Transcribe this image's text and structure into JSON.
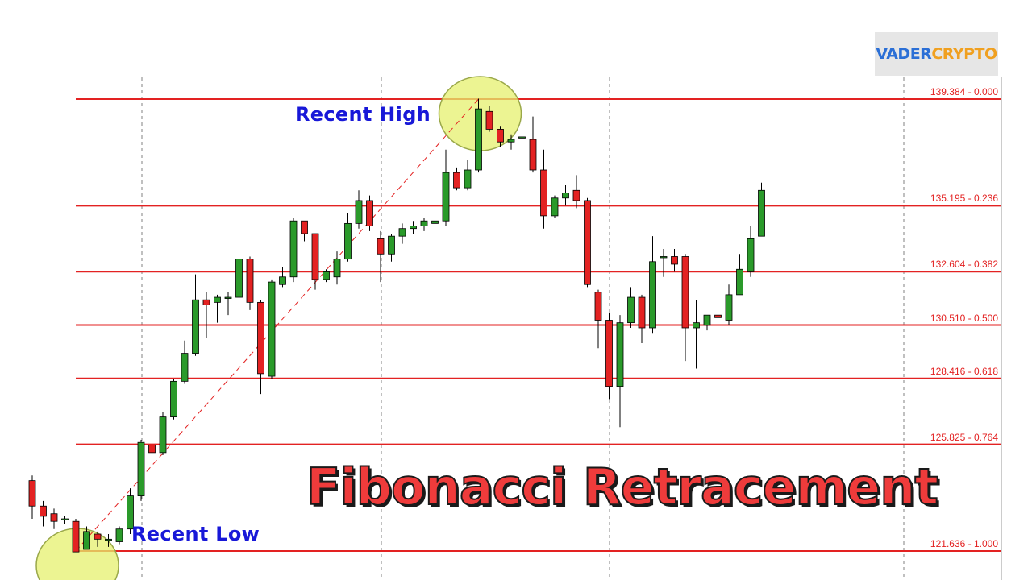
{
  "brand": {
    "part1": "VADER",
    "part2": "CRYPTO"
  },
  "title": "Fibonacci Retracement",
  "annotations": {
    "recent_high": "Recent High",
    "recent_low": "Recent Low"
  },
  "colors": {
    "bull": "#2a9a2a",
    "bear": "#e32222",
    "fib_line": "#e32222",
    "highlight": "#e6f06e",
    "annotation": "#1818d8"
  },
  "chart_data": {
    "type": "candlestick",
    "fib_levels": [
      {
        "price": 139.384,
        "ratio": "0.000",
        "label": "139.384 - 0.000"
      },
      {
        "price": 135.195,
        "ratio": "0.236",
        "label": "135.195 - 0.236"
      },
      {
        "price": 132.604,
        "ratio": "0.382",
        "label": "132.604 - 0.382"
      },
      {
        "price": 130.51,
        "ratio": "0.500",
        "label": "130.510 - 0.500"
      },
      {
        "price": 128.416,
        "ratio": "0.618",
        "label": "128.416 - 0.618"
      },
      {
        "price": 125.825,
        "ratio": "0.764",
        "label": "125.825 - 0.764"
      },
      {
        "price": 121.636,
        "ratio": "1.000",
        "label": "121.636 - 1.000"
      }
    ],
    "swing_low": 121.636,
    "swing_high": 139.384,
    "candles": [
      [
        124.4,
        123.4,
        124.6,
        122.9
      ],
      [
        123.4,
        123.0,
        123.6,
        122.6
      ],
      [
        123.1,
        122.8,
        123.3,
        122.5
      ],
      [
        122.9,
        122.9,
        123.0,
        122.7
      ],
      [
        122.8,
        121.6,
        122.9,
        121.6
      ],
      [
        121.7,
        122.4,
        122.6,
        121.8
      ],
      [
        122.3,
        122.1,
        122.4,
        121.8
      ],
      [
        122.1,
        122.1,
        122.3,
        121.8
      ],
      [
        122.0,
        122.5,
        122.6,
        121.9
      ],
      [
        122.5,
        123.8,
        124.1,
        122.3
      ],
      [
        123.8,
        125.9,
        126.0,
        123.6
      ],
      [
        125.8,
        125.5,
        125.9,
        125.4
      ],
      [
        125.5,
        126.9,
        127.1,
        125.4
      ],
      [
        126.9,
        128.3,
        128.4,
        126.8
      ],
      [
        128.3,
        129.4,
        129.9,
        128.2
      ],
      [
        129.4,
        131.5,
        132.5,
        129.3
      ],
      [
        131.5,
        131.3,
        131.8,
        130.0
      ],
      [
        131.4,
        131.6,
        131.7,
        130.6
      ],
      [
        131.6,
        131.6,
        131.8,
        130.9
      ],
      [
        131.6,
        133.1,
        133.2,
        131.5
      ],
      [
        133.1,
        131.4,
        133.2,
        131.1
      ],
      [
        131.4,
        128.6,
        131.5,
        127.8
      ],
      [
        128.5,
        132.2,
        132.3,
        128.4
      ],
      [
        132.1,
        132.4,
        132.8,
        132.0
      ],
      [
        132.4,
        134.6,
        134.7,
        132.2
      ],
      [
        134.6,
        134.1,
        134.6,
        133.8
      ],
      [
        134.1,
        132.3,
        134.1,
        131.9
      ],
      [
        132.3,
        132.6,
        132.7,
        132.2
      ],
      [
        132.4,
        133.1,
        133.4,
        132.1
      ],
      [
        133.1,
        134.5,
        134.9,
        133.0
      ],
      [
        134.5,
        135.4,
        135.8,
        134.3
      ],
      [
        135.4,
        134.4,
        135.6,
        134.2
      ],
      [
        133.9,
        133.3,
        134.2,
        132.2
      ],
      [
        133.3,
        134.0,
        134.1,
        133.0
      ],
      [
        134.0,
        134.3,
        134.5,
        133.7
      ],
      [
        134.3,
        134.4,
        134.6,
        134.1
      ],
      [
        134.4,
        134.6,
        134.7,
        134.2
      ],
      [
        134.5,
        134.6,
        134.8,
        133.6
      ],
      [
        134.6,
        136.5,
        137.4,
        134.4
      ],
      [
        136.5,
        135.9,
        136.7,
        135.8
      ],
      [
        135.9,
        136.6,
        137.0,
        135.8
      ],
      [
        136.6,
        139.0,
        139.4,
        136.5
      ],
      [
        138.9,
        138.2,
        139.1,
        138.1
      ],
      [
        138.2,
        137.7,
        138.3,
        137.5
      ],
      [
        137.7,
        137.8,
        138.0,
        137.4
      ],
      [
        137.9,
        137.9,
        138.0,
        137.6
      ],
      [
        137.8,
        136.6,
        138.7,
        136.5
      ],
      [
        136.6,
        134.8,
        137.4,
        134.3
      ],
      [
        134.8,
        135.5,
        135.6,
        134.7
      ],
      [
        135.5,
        135.7,
        136.0,
        135.2
      ],
      [
        135.8,
        135.4,
        136.4,
        135.1
      ],
      [
        135.4,
        132.1,
        135.5,
        132.0
      ],
      [
        131.8,
        130.7,
        131.9,
        129.6
      ],
      [
        130.7,
        128.1,
        131.0,
        127.6
      ],
      [
        128.1,
        130.6,
        130.9,
        126.5
      ],
      [
        130.6,
        131.6,
        132.0,
        130.4
      ],
      [
        131.6,
        130.4,
        131.7,
        129.8
      ],
      [
        130.4,
        133.0,
        134.0,
        130.2
      ],
      [
        133.2,
        133.2,
        133.5,
        132.4
      ],
      [
        133.2,
        132.9,
        133.5,
        132.6
      ],
      [
        133.2,
        130.4,
        133.3,
        129.1
      ],
      [
        130.4,
        130.6,
        131.5,
        128.8
      ],
      [
        130.5,
        130.9,
        130.9,
        130.3
      ],
      [
        130.9,
        130.8,
        131.1,
        130.1
      ],
      [
        130.7,
        131.7,
        132.1,
        130.5
      ],
      [
        131.7,
        132.7,
        133.3,
        131.7
      ],
      [
        132.6,
        133.9,
        134.4,
        132.4
      ],
      [
        134.0,
        135.8,
        136.1,
        134.2
      ]
    ]
  }
}
